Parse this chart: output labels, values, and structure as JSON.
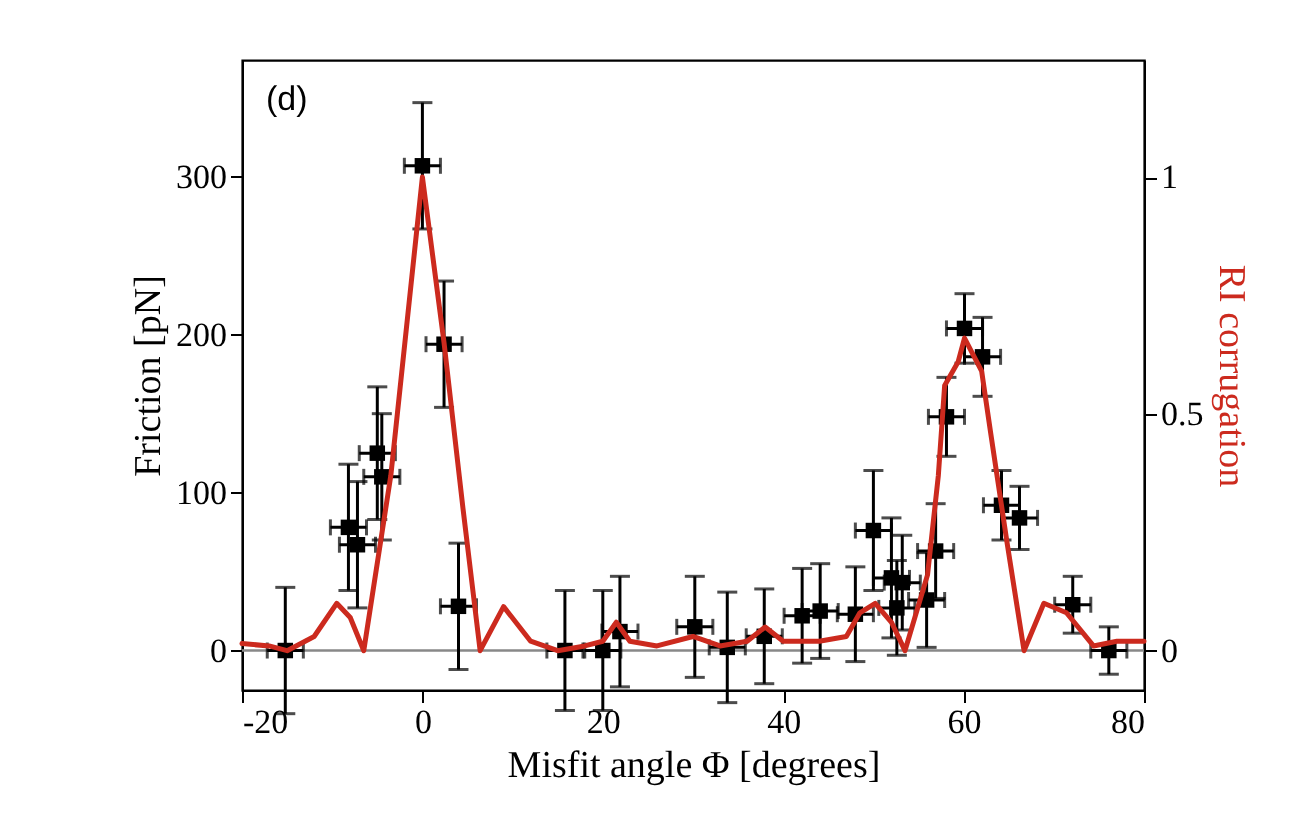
{
  "chart_data": {
    "type": "scatter",
    "xlabel": "Misfit angle Φ [degrees]",
    "ylabel": "Friction [pN]",
    "y2label": "RI corrugation",
    "annotations": [
      "(d)"
    ],
    "xlim": [
      -20,
      80
    ],
    "xticks": [
      -20,
      0,
      20,
      40,
      60,
      80
    ],
    "ylim": [
      -25,
      374
    ],
    "yticks": [
      0,
      100,
      200,
      300
    ],
    "y2lim": [
      -0.083,
      1.247
    ],
    "y2ticks": [
      0,
      0.5,
      1
    ],
    "ref_lines": [
      {
        "axis": "y",
        "value": 0,
        "color": "#888888"
      }
    ],
    "series": [
      {
        "marker": "square",
        "color": "#000000",
        "x": [
          -15.2,
          -8.2,
          -7.2,
          -5.0,
          -4.5,
          0,
          2.4,
          4.0,
          15.8,
          20.0,
          21.9,
          30.2,
          33.8,
          37.9,
          42.1,
          44.1,
          48.0,
          50.0,
          52.0,
          53.2,
          52.6,
          55.9,
          56.9,
          58.1,
          60.1,
          62.1,
          64.2,
          66.2,
          72.1,
          76.1
        ],
        "values": [
          0,
          78,
          67,
          125,
          110,
          307,
          194,
          28,
          0,
          0,
          12,
          15,
          2,
          9,
          22,
          25,
          23,
          76,
          46,
          43,
          27,
          32,
          63,
          148,
          204,
          186,
          92,
          84,
          29,
          0
        ],
        "errors": [
          40,
          40,
          40,
          42,
          40,
          40,
          40,
          40,
          38,
          38,
          35,
          32,
          35,
          30,
          30,
          30,
          30,
          38,
          38,
          30,
          30,
          30,
          30,
          25,
          22,
          25,
          22,
          20,
          18,
          15
        ],
        "xerrors": [
          2,
          2,
          2,
          2,
          2,
          2,
          2,
          2,
          2,
          2,
          2,
          2,
          2,
          2,
          2,
          2,
          2,
          2,
          2,
          2,
          2,
          2,
          2,
          2,
          2,
          2,
          2,
          2,
          2,
          2
        ]
      },
      {
        "type": "line",
        "axis": "y2",
        "color": "#cc2a1e",
        "x": [
          -20,
          -17,
          -15,
          -12,
          -9.5,
          -8,
          -6.5,
          -3.5,
          0,
          2.4,
          4.5,
          6.4,
          9,
          12,
          15,
          18,
          20,
          21.5,
          23,
          26,
          30,
          33,
          36,
          38,
          40,
          44,
          47,
          48.5,
          50.2,
          52,
          53.5,
          56,
          57.2,
          57.9,
          59.4,
          60.1,
          62,
          63,
          64.8,
          66.7,
          68.9,
          71.4,
          74.4,
          77,
          80
        ],
        "values": [
          0.015,
          0.01,
          0.0,
          0.03,
          0.1,
          0.07,
          0.0,
          0.37,
          1.0,
          0.65,
          0.3,
          0.0,
          0.093,
          0.02,
          0.0,
          0.01,
          0.02,
          0.06,
          0.02,
          0.01,
          0.03,
          0.01,
          0.02,
          0.05,
          0.02,
          0.02,
          0.03,
          0.08,
          0.1,
          0.06,
          0.0,
          0.16,
          0.37,
          0.56,
          0.61,
          0.66,
          0.59,
          0.46,
          0.23,
          0.0,
          0.1,
          0.08,
          0.01,
          0.02,
          0.02
        ]
      }
    ]
  }
}
